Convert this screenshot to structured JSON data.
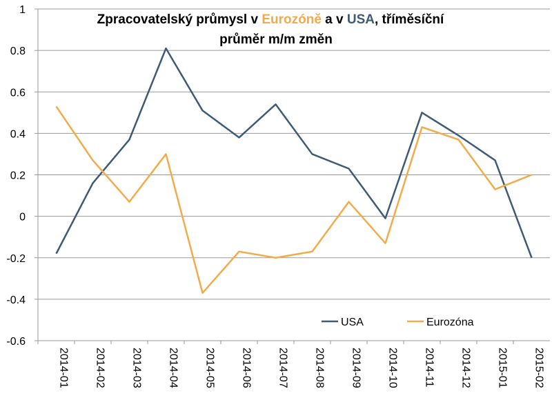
{
  "chart_data": {
    "type": "line",
    "title_parts": [
      "Zpracovatelský průmysl v ",
      "Eurozóně",
      " a v ",
      "USA",
      ", tříměsíční"
    ],
    "title_line2": "průměr m/m změn",
    "xlabel": "",
    "ylabel": "",
    "ylim": [
      -0.6,
      1
    ],
    "yticks": [
      -0.6,
      -0.4,
      -0.2,
      0,
      0.2,
      0.4,
      0.6,
      0.8,
      1
    ],
    "ytick_labels": [
      "-0.6",
      "-0.4",
      "-0.2",
      "0",
      "0.2",
      "0.4",
      "0.6",
      "0.8",
      "1"
    ],
    "grid": true,
    "legend_position": "bottom-right",
    "categories": [
      "2014-01",
      "2014-02",
      "2014-03",
      "2014-04",
      "2014-05",
      "2014-06",
      "2014-07",
      "2014-08",
      "2014-09",
      "2014-10",
      "2014-11",
      "2014-12",
      "2015-01",
      "2015-02"
    ],
    "series": [
      {
        "name": "USA",
        "color": "#3d5a76",
        "values": [
          -0.18,
          0.16,
          0.37,
          0.81,
          0.51,
          0.38,
          0.54,
          0.3,
          0.23,
          -0.01,
          0.5,
          0.39,
          0.27,
          -0.2
        ]
      },
      {
        "name": "Eurozóna",
        "color": "#f2ab4a",
        "values": [
          0.53,
          0.27,
          0.07,
          0.3,
          -0.37,
          -0.17,
          -0.2,
          -0.17,
          0.07,
          -0.13,
          0.43,
          0.37,
          0.13,
          0.2
        ]
      }
    ]
  }
}
